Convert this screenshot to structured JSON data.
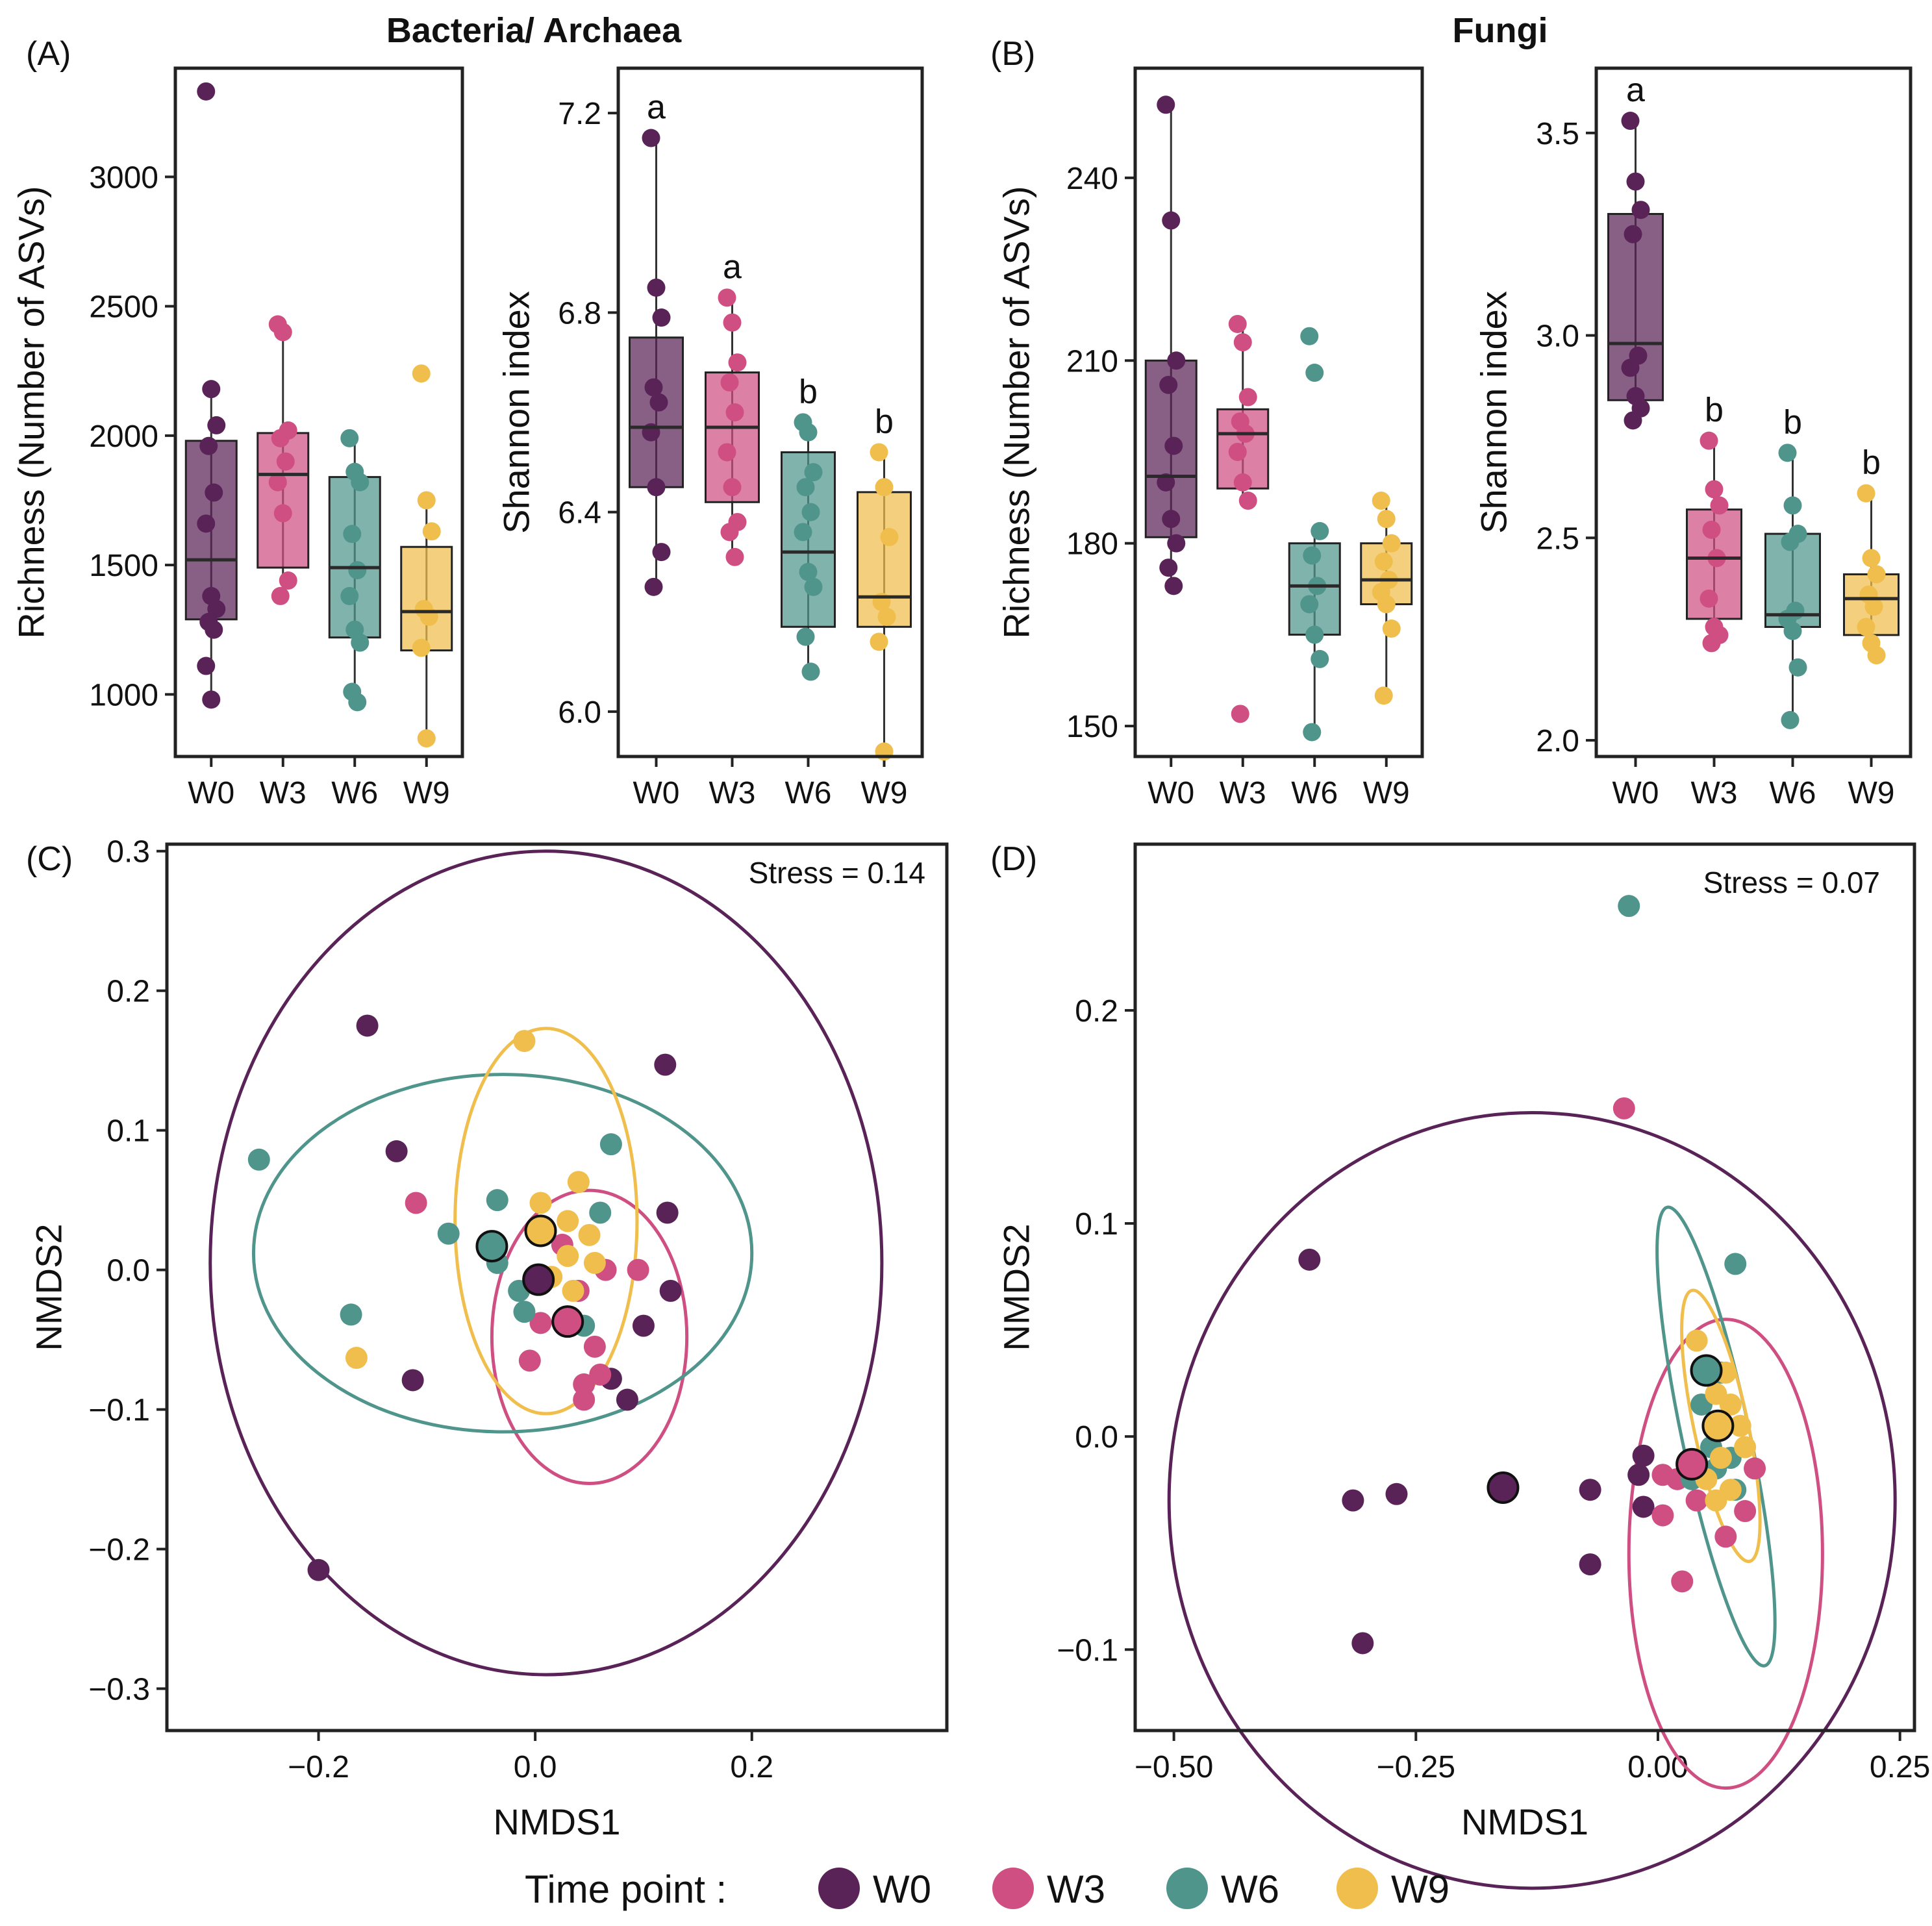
{
  "colors": {
    "W0": "#5a2358",
    "W3": "#cf4f83",
    "W6": "#4f958c",
    "W9": "#f0be4c"
  },
  "headings": {
    "bacteria": "Bacteria/ Archaea",
    "fungi": "Fungi"
  },
  "stress": {
    "C": "Stress = 0.14",
    "D": "Stress = 0.07"
  },
  "legend": {
    "title": "Time point :",
    "items": [
      "W0",
      "W3",
      "W6",
      "W9"
    ]
  },
  "chart_data": [
    {
      "id": "A1",
      "panel_label": "(A)",
      "type": "box",
      "ylabel": "Richness (Number of ASVs)",
      "ylim": [
        760,
        3420
      ],
      "yticks": [
        1000,
        1500,
        2000,
        2500,
        3000
      ],
      "categories": [
        "W0",
        "W3",
        "W6",
        "W9"
      ],
      "boxes": [
        {
          "name": "W0",
          "q1": 1290,
          "median": 1520,
          "q3": 1980,
          "whisker_low": 980,
          "whisker_high": 2180,
          "points": [
            3330,
            2180,
            2040,
            1960,
            1780,
            1660,
            1380,
            1330,
            1280,
            1250,
            1110,
            980
          ]
        },
        {
          "name": "W3",
          "q1": 1490,
          "median": 1850,
          "q3": 2010,
          "whisker_low": 1380,
          "whisker_high": 2430,
          "points": [
            2430,
            2400,
            2020,
            1990,
            1900,
            1820,
            1700,
            1440,
            1380
          ]
        },
        {
          "name": "W6",
          "q1": 1220,
          "median": 1490,
          "q3": 1840,
          "whisker_low": 970,
          "whisker_high": 1990,
          "points": [
            1990,
            1860,
            1820,
            1620,
            1480,
            1380,
            1250,
            1200,
            1010,
            970
          ]
        },
        {
          "name": "W9",
          "q1": 1170,
          "median": 1320,
          "q3": 1570,
          "whisker_low": 830,
          "whisker_high": 1750,
          "points": [
            2240,
            1750,
            1630,
            1330,
            1300,
            1180,
            830
          ]
        }
      ]
    },
    {
      "id": "A2",
      "panel_label": "",
      "type": "box",
      "ylabel": "Shannon index",
      "ylim": [
        5.91,
        7.29
      ],
      "yticks": [
        6.0,
        6.4,
        6.8,
        7.2
      ],
      "tick_decimals": 1,
      "categories": [
        "W0",
        "W3",
        "W6",
        "W9"
      ],
      "letters": [
        "a",
        "a",
        "b",
        "b"
      ],
      "boxes": [
        {
          "name": "W0",
          "q1": 6.45,
          "median": 6.57,
          "q3": 6.75,
          "whisker_low": 6.25,
          "whisker_high": 7.15,
          "points": [
            7.15,
            6.85,
            6.79,
            6.65,
            6.62,
            6.56,
            6.45,
            6.32,
            6.25
          ]
        },
        {
          "name": "W3",
          "q1": 6.42,
          "median": 6.57,
          "q3": 6.68,
          "whisker_low": 6.31,
          "whisker_high": 6.83,
          "points": [
            6.83,
            6.78,
            6.7,
            6.66,
            6.6,
            6.52,
            6.45,
            6.38,
            6.36,
            6.31
          ]
        },
        {
          "name": "W6",
          "q1": 6.17,
          "median": 6.32,
          "q3": 6.52,
          "whisker_low": 6.08,
          "whisker_high": 6.58,
          "points": [
            6.58,
            6.56,
            6.48,
            6.45,
            6.4,
            6.36,
            6.28,
            6.25,
            6.15,
            6.08
          ]
        },
        {
          "name": "W9",
          "q1": 6.17,
          "median": 6.23,
          "q3": 6.44,
          "whisker_low": 5.92,
          "whisker_high": 6.52,
          "points": [
            6.52,
            6.45,
            6.35,
            6.22,
            6.19,
            6.14,
            5.92
          ]
        }
      ]
    },
    {
      "id": "B1",
      "panel_label": "(B)",
      "type": "box",
      "ylabel": "Richness (Number of ASVs)",
      "ylim": [
        145,
        258
      ],
      "yticks": [
        150,
        180,
        210,
        240
      ],
      "categories": [
        "W0",
        "W3",
        "W6",
        "W9"
      ],
      "boxes": [
        {
          "name": "W0",
          "q1": 181,
          "median": 191,
          "q3": 210,
          "whisker_low": 173,
          "whisker_high": 252,
          "points": [
            252,
            233,
            210,
            206,
            196,
            190,
            184,
            180,
            176,
            173
          ]
        },
        {
          "name": "W3",
          "q1": 189,
          "median": 198,
          "q3": 202,
          "whisker_low": 187,
          "whisker_high": 216,
          "points": [
            216,
            213,
            204,
            200,
            198,
            195,
            190,
            187,
            152
          ]
        },
        {
          "name": "W6",
          "q1": 165,
          "median": 173,
          "q3": 180,
          "whisker_low": 149,
          "whisker_high": 182,
          "points": [
            214,
            208,
            182,
            178,
            173,
            170,
            165,
            161,
            149
          ]
        },
        {
          "name": "W9",
          "q1": 170,
          "median": 174,
          "q3": 180,
          "whisker_low": 155,
          "whisker_high": 187,
          "points": [
            187,
            184,
            180,
            177,
            174,
            172,
            170,
            166,
            155
          ]
        }
      ]
    },
    {
      "id": "B2",
      "panel_label": "",
      "type": "box",
      "ylabel": "Shannon index",
      "ylim": [
        1.96,
        3.66
      ],
      "yticks": [
        2.0,
        2.5,
        3.0,
        3.5
      ],
      "tick_decimals": 1,
      "categories": [
        "W0",
        "W3",
        "W6",
        "W9"
      ],
      "letters": [
        "a",
        "b",
        "b",
        "b"
      ],
      "boxes": [
        {
          "name": "W0",
          "q1": 2.84,
          "median": 2.98,
          "q3": 3.3,
          "whisker_low": 2.79,
          "whisker_high": 3.53,
          "points": [
            3.53,
            3.38,
            3.31,
            3.25,
            2.95,
            2.92,
            2.85,
            2.82,
            2.79
          ]
        },
        {
          "name": "W3",
          "q1": 2.3,
          "median": 2.45,
          "q3": 2.57,
          "whisker_low": 2.24,
          "whisker_high": 2.74,
          "points": [
            2.74,
            2.62,
            2.58,
            2.52,
            2.45,
            2.35,
            2.28,
            2.26,
            2.24
          ]
        },
        {
          "name": "W6",
          "q1": 2.28,
          "median": 2.31,
          "q3": 2.51,
          "whisker_low": 2.05,
          "whisker_high": 2.71,
          "points": [
            2.71,
            2.58,
            2.51,
            2.49,
            2.32,
            2.3,
            2.27,
            2.18,
            2.05
          ]
        },
        {
          "name": "W9",
          "q1": 2.26,
          "median": 2.35,
          "q3": 2.41,
          "whisker_low": 2.21,
          "whisker_high": 2.61,
          "points": [
            2.61,
            2.45,
            2.41,
            2.36,
            2.33,
            2.28,
            2.24,
            2.21
          ]
        }
      ]
    },
    {
      "id": "C",
      "panel_label": "(C)",
      "type": "scatter",
      "xlabel": "NMDS1",
      "ylabel": "NMDS2",
      "xlim": [
        -0.34,
        0.38
      ],
      "ylim": [
        -0.33,
        0.305
      ],
      "xticks": [
        -0.2,
        0.0,
        0.2
      ],
      "yticks": [
        -0.3,
        -0.2,
        -0.1,
        0.0,
        0.1,
        0.2,
        0.3
      ],
      "tick_decimals": 1,
      "series": [
        {
          "name": "W0",
          "points": [
            [
              -0.155,
              0.175
            ],
            [
              -0.2,
              -0.215
            ],
            [
              0.12,
              0.147
            ],
            [
              -0.128,
              0.085
            ],
            [
              0.122,
              0.041
            ],
            [
              0.125,
              -0.015
            ],
            [
              0.1,
              -0.04
            ],
            [
              -0.113,
              -0.079
            ],
            [
              0.07,
              -0.078
            ],
            [
              0.085,
              -0.093
            ]
          ],
          "centroid": [
            0.003,
            -0.007
          ],
          "ellipse": {
            "cx": 0.01,
            "cy": 0.005,
            "rx": 0.31,
            "ry": 0.295
          }
        },
        {
          "name": "W3",
          "points": [
            [
              -0.11,
              0.048
            ],
            [
              0.025,
              0.018
            ],
            [
              0.065,
              0.0
            ],
            [
              0.095,
              0.0
            ],
            [
              0.0,
              -0.01
            ],
            [
              0.04,
              -0.015
            ],
            [
              0.005,
              -0.038
            ],
            [
              0.055,
              -0.055
            ],
            [
              -0.005,
              -0.065
            ],
            [
              0.045,
              -0.082
            ],
            [
              0.045,
              -0.093
            ],
            [
              0.06,
              -0.075
            ]
          ],
          "centroid": [
            0.03,
            -0.037
          ],
          "ellipse": {
            "cx": 0.05,
            "cy": -0.048,
            "rx": 0.09,
            "ry": 0.105
          }
        },
        {
          "name": "W6",
          "points": [
            [
              -0.255,
              0.079
            ],
            [
              0.07,
              0.09
            ],
            [
              -0.035,
              0.05
            ],
            [
              -0.08,
              0.026
            ],
            [
              0.06,
              0.041
            ],
            [
              -0.035,
              0.005
            ],
            [
              -0.015,
              -0.015
            ],
            [
              -0.01,
              -0.03
            ],
            [
              0.045,
              -0.04
            ],
            [
              -0.17,
              -0.032
            ]
          ],
          "centroid": [
            -0.04,
            0.017
          ],
          "ellipse": {
            "cx": -0.03,
            "cy": 0.012,
            "rx": 0.23,
            "ry": 0.128
          }
        },
        {
          "name": "W9",
          "points": [
            [
              -0.01,
              0.164
            ],
            [
              0.04,
              0.063
            ],
            [
              0.005,
              0.048
            ],
            [
              0.03,
              0.035
            ],
            [
              0.05,
              0.025
            ],
            [
              0.03,
              0.01
            ],
            [
              0.055,
              0.005
            ],
            [
              0.015,
              -0.005
            ],
            [
              0.035,
              -0.015
            ],
            [
              -0.165,
              -0.063
            ]
          ],
          "centroid": [
            0.005,
            0.028
          ],
          "ellipse": {
            "cx": 0.01,
            "cy": 0.035,
            "rx": 0.084,
            "ry": 0.138
          }
        }
      ]
    },
    {
      "id": "D",
      "panel_label": "(D)",
      "type": "scatter",
      "xlabel": "NMDS1",
      "ylabel": "NMDS2",
      "xlim": [
        -0.54,
        0.265
      ],
      "ylim": [
        -0.138,
        0.278
      ],
      "xticks": [
        -0.5,
        -0.25,
        0.0,
        0.25
      ],
      "yticks": [
        -0.1,
        0.0,
        0.1,
        0.2
      ],
      "tick_decimals": [
        2,
        1
      ],
      "series": [
        {
          "name": "W0",
          "points": [
            [
              -0.36,
              0.083
            ],
            [
              -0.315,
              -0.03
            ],
            [
              -0.27,
              -0.027
            ],
            [
              -0.305,
              -0.097
            ],
            [
              -0.07,
              -0.025
            ],
            [
              -0.015,
              -0.009
            ],
            [
              -0.02,
              -0.018
            ],
            [
              -0.015,
              -0.033
            ],
            [
              -0.07,
              -0.06
            ]
          ],
          "centroid": [
            -0.16,
            -0.024
          ],
          "ellipse": {
            "cx": -0.13,
            "cy": -0.03,
            "rx": 0.375,
            "ry": 0.182
          }
        },
        {
          "name": "W3",
          "points": [
            [
              -0.035,
              0.154
            ],
            [
              0.005,
              -0.018
            ],
            [
              0.02,
              -0.02
            ],
            [
              0.04,
              -0.03
            ],
            [
              0.1,
              -0.015
            ],
            [
              0.09,
              -0.035
            ],
            [
              0.005,
              -0.037
            ],
            [
              0.07,
              -0.047
            ],
            [
              0.025,
              -0.068
            ]
          ],
          "centroid": [
            0.035,
            -0.013
          ],
          "ellipse": {
            "cx": 0.07,
            "cy": -0.055,
            "rx": 0.1,
            "ry": 0.11
          }
        },
        {
          "name": "W6",
          "points": [
            [
              -0.03,
              0.249
            ],
            [
              0.08,
              0.081
            ],
            [
              0.045,
              0.015
            ],
            [
              0.065,
              0.03
            ],
            [
              0.055,
              -0.005
            ],
            [
              0.06,
              -0.015
            ],
            [
              0.035,
              -0.02
            ],
            [
              0.08,
              -0.025
            ],
            [
              0.075,
              -0.01
            ]
          ],
          "centroid": [
            0.05,
            0.031
          ],
          "ellipse": {
            "cx": 0.06,
            "cy": 0.0,
            "rx": 0.035,
            "ry": 0.11
          }
        },
        {
          "name": "W9",
          "points": [
            [
              0.04,
              0.045
            ],
            [
              0.07,
              0.03
            ],
            [
              0.06,
              0.02
            ],
            [
              0.075,
              0.015
            ],
            [
              0.085,
              0.005
            ],
            [
              0.09,
              -0.005
            ],
            [
              0.065,
              -0.01
            ],
            [
              0.05,
              -0.02
            ],
            [
              0.075,
              -0.025
            ],
            [
              0.06,
              -0.03
            ]
          ],
          "centroid": [
            0.062,
            0.005
          ],
          "ellipse": {
            "cx": 0.065,
            "cy": 0.005,
            "rx": 0.028,
            "ry": 0.065
          }
        }
      ]
    }
  ]
}
